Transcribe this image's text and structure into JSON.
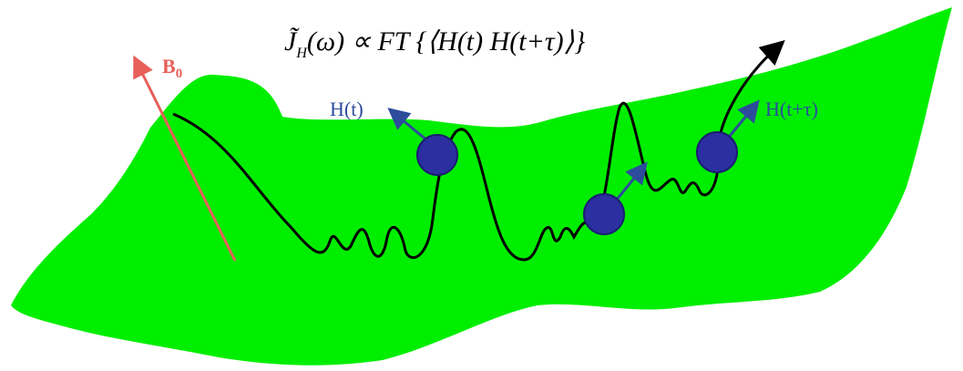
{
  "field_label": {
    "main": "B",
    "sub": "0"
  },
  "formula": {
    "symbol": "J̃",
    "sub": "H",
    "rest": "(ω) ∝ FT {⟨H(t) H(t+τ)⟩}"
  },
  "labels": {
    "start": "H(t)",
    "end": "H(t+τ)"
  }
}
